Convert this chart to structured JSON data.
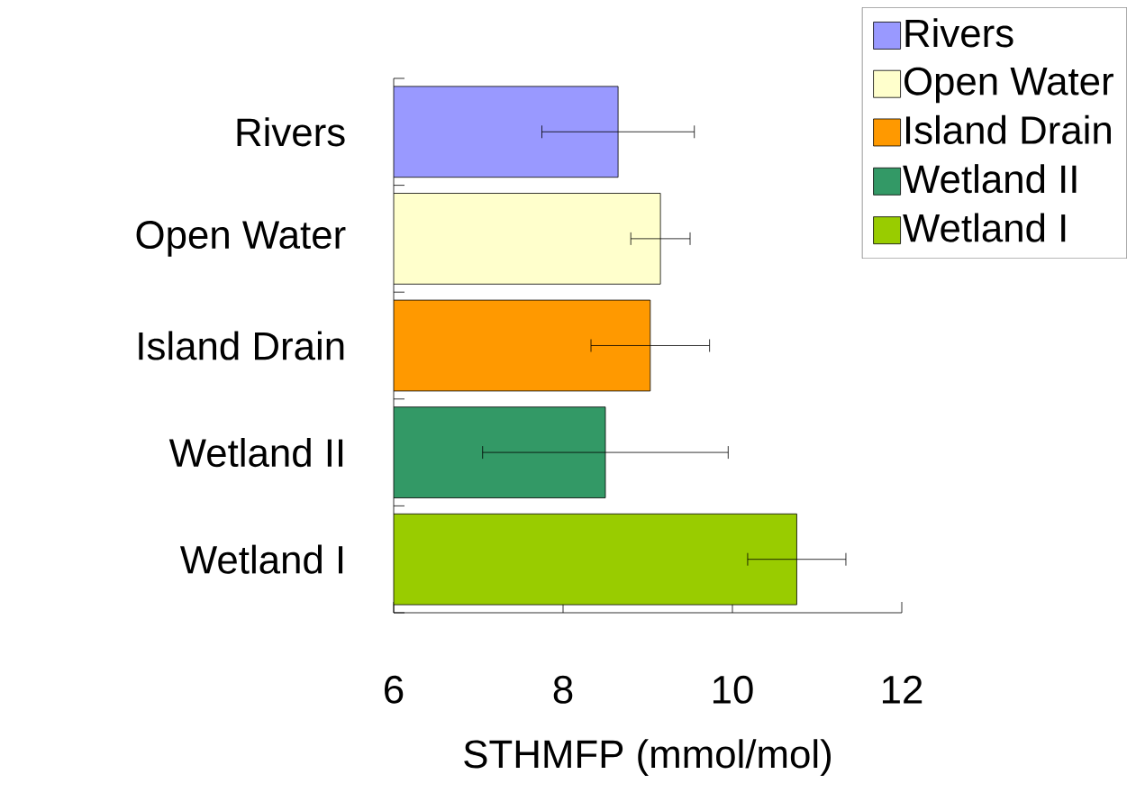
{
  "chart_data": {
    "type": "bar",
    "orientation": "horizontal",
    "xlabel": "STHMFP (mmol/mol)",
    "categories": [
      "Rivers",
      "Open Water",
      "Island Drain",
      "Wetland II",
      "Wetland I"
    ],
    "series": [
      {
        "name": "Rivers",
        "color": "#9999ff",
        "values": [
          8.65,
          null,
          null,
          null,
          null
        ],
        "errors": [
          0.9,
          null,
          null,
          null,
          null
        ]
      },
      {
        "name": "Open Water",
        "color": "#ffffcc",
        "values": [
          null,
          9.15,
          null,
          null,
          null
        ],
        "errors": [
          null,
          0.35,
          null,
          null,
          null
        ]
      },
      {
        "name": "Island Drain",
        "color": "#ff9900",
        "values": [
          null,
          null,
          9.03,
          null,
          null
        ],
        "errors": [
          null,
          null,
          0.7,
          null,
          null
        ]
      },
      {
        "name": "Wetland II",
        "color": "#339966",
        "values": [
          null,
          null,
          null,
          8.5,
          null
        ],
        "errors": [
          null,
          null,
          null,
          1.45,
          null
        ]
      },
      {
        "name": "Wetland I",
        "color": "#99cc00",
        "values": [
          null,
          null,
          null,
          null,
          10.76
        ],
        "errors": [
          null,
          null,
          null,
          null,
          0.58
        ]
      }
    ],
    "xlim": [
      6,
      12
    ],
    "xticks": [
      6,
      8,
      10,
      12
    ],
    "legend": "top right"
  }
}
